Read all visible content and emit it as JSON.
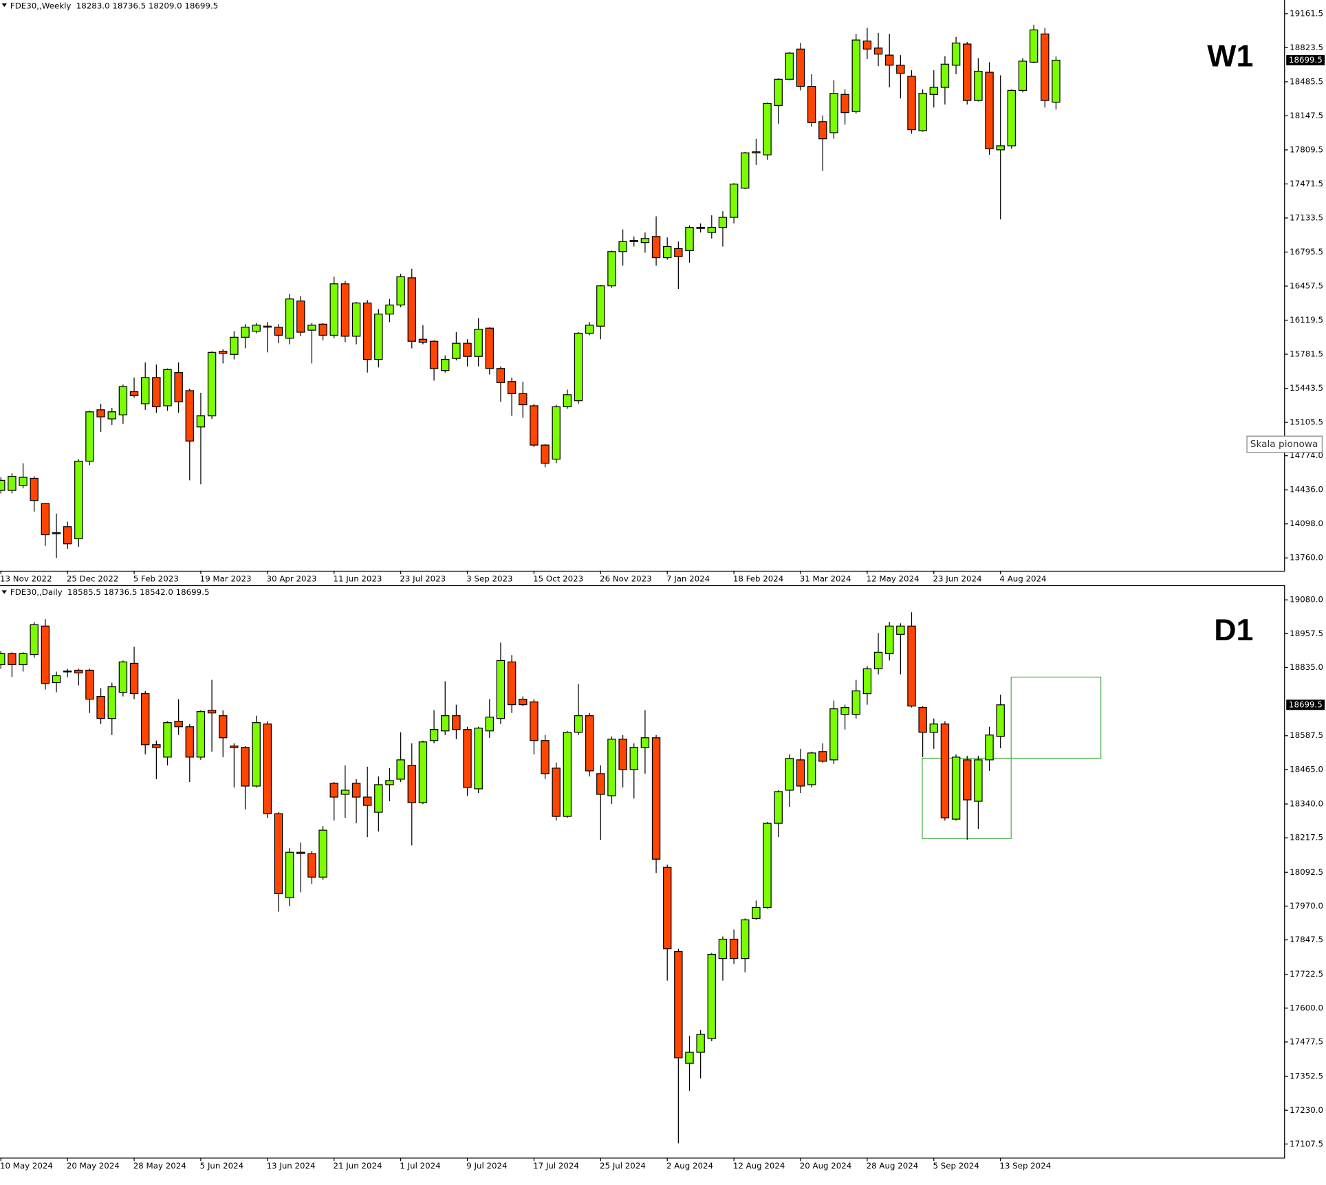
{
  "chart_data": [
    {
      "type": "candlestick",
      "title": "FDE30,,Weekly",
      "ohlc_text": "18283.0 18736.5 18209.0 18699.5",
      "label": "W1",
      "tooltip": "Skala pionowa",
      "up_color": "#7cfc00",
      "down_color": "#ff4500",
      "ylim": [
        13633,
        19297
      ],
      "yticks": [
        19161.5,
        18823.5,
        18485.5,
        18147.5,
        17809.5,
        17471.5,
        17133.5,
        16795.5,
        16457.5,
        16119.5,
        15781.5,
        15443.5,
        15105.5,
        {
          "value": 14774,
          "label": "14774.0"
        },
        {
          "value": 14436,
          "label": "14436.0"
        },
        {
          "value": 14098,
          "label": "14098.0"
        },
        {
          "value": 13760,
          "label": "13760.0"
        }
      ],
      "current_price": 18699.5,
      "categories": [
        "13 Nov 2022",
        null,
        null,
        null,
        null,
        null,
        "25 Dec 2022",
        null,
        null,
        null,
        null,
        null,
        "5 Feb 2023",
        null,
        null,
        null,
        null,
        null,
        "19 Mar 2023",
        null,
        null,
        null,
        null,
        null,
        "30 Apr 2023",
        null,
        null,
        null,
        null,
        null,
        "11 Jun 2023",
        null,
        null,
        null,
        null,
        null,
        "23 Jul 2023",
        null,
        null,
        null,
        null,
        null,
        "3 Sep 2023",
        null,
        null,
        null,
        null,
        null,
        "15 Oct 2023",
        null,
        null,
        null,
        null,
        null,
        "26 Nov 2023",
        null,
        null,
        null,
        null,
        null,
        "7 Jan 2024",
        null,
        null,
        null,
        null,
        null,
        "18 Feb 2024",
        null,
        null,
        null,
        null,
        null,
        "31 Mar 2024",
        null,
        null,
        null,
        null,
        null,
        "12 May 2024",
        null,
        null,
        null,
        null,
        null,
        "23 Jun 2024",
        null,
        null,
        null,
        null,
        null,
        "4 Aug 2024",
        null,
        null,
        null,
        null,
        null
      ],
      "open": [
        14430,
        14430,
        14480,
        14550,
        14300,
        14010,
        14070,
        13950,
        14720,
        15230,
        15140,
        15180,
        15410,
        15290,
        15550,
        15270,
        15600,
        15420,
        15060,
        15170,
        15810,
        15780,
        15950,
        16010,
        16060,
        16050,
        15940,
        16310,
        16020,
        16080,
        15970,
        16480,
        15960,
        16290,
        15730,
        16180,
        16270,
        16540,
        15930,
        15910,
        15620,
        15740,
        15890,
        15760,
        16040,
        15640,
        15510,
        15390,
        15270,
        14880,
        14740,
        15260,
        15320,
        15990,
        16060,
        16460,
        16800,
        16910,
        16890,
        16950,
        16740,
        16830,
        16810,
        17030,
        16990,
        17040,
        17140,
        17430,
        17780,
        17760,
        18250,
        18510,
        18810,
        18440,
        18090,
        17980,
        18360,
        18190,
        18890,
        18820,
        18750,
        18650,
        18540,
        18000,
        18360,
        18430,
        18650,
        18860,
        18300,
        18580,
        17810,
        17850,
        18400,
        18680,
        18960,
        18283
      ],
      "high": [
        14560,
        14600,
        14700,
        14570,
        14300,
        14200,
        14120,
        14740,
        15220,
        15290,
        15250,
        15480,
        15550,
        15700,
        15680,
        15640,
        15700,
        15440,
        15400,
        15810,
        15830,
        16010,
        16080,
        16090,
        16100,
        16080,
        16380,
        16360,
        16090,
        16090,
        16550,
        16510,
        16300,
        16320,
        16230,
        16330,
        16580,
        16630,
        16070,
        15920,
        15770,
        16000,
        15930,
        16140,
        16050,
        15660,
        15550,
        15510,
        15290,
        14890,
        15280,
        15430,
        16000,
        16100,
        16470,
        16810,
        17020,
        16950,
        16990,
        17150,
        16940,
        16900,
        17060,
        17080,
        17160,
        17200,
        17480,
        17790,
        17920,
        18280,
        18520,
        18780,
        18870,
        18560,
        18150,
        18500,
        18410,
        18960,
        19020,
        18970,
        18960,
        18750,
        18600,
        18410,
        18600,
        18740,
        18930,
        18880,
        18720,
        18680,
        18550,
        18410,
        18720,
        19050,
        19020,
        18736.5
      ],
      "low": [
        14400,
        14400,
        14450,
        14220,
        13880,
        13760,
        13850,
        13870,
        14680,
        15010,
        15080,
        15090,
        15350,
        15230,
        15200,
        15220,
        15200,
        14530,
        14490,
        15140,
        15690,
        15730,
        15840,
        15990,
        15800,
        15890,
        15880,
        15960,
        15690,
        15920,
        15940,
        15900,
        15880,
        15600,
        15650,
        16100,
        16250,
        15840,
        15880,
        15520,
        15600,
        15720,
        15660,
        15660,
        15580,
        15310,
        15170,
        15150,
        14860,
        14660,
        14700,
        15240,
        15290,
        15970,
        15930,
        16440,
        16660,
        16850,
        16790,
        16660,
        16720,
        16430,
        16690,
        16990,
        16930,
        16850,
        17080,
        17420,
        17660,
        17710,
        18070,
        18500,
        18400,
        18040,
        17600,
        17920,
        18060,
        18170,
        18710,
        18640,
        18430,
        18320,
        17970,
        17990,
        18230,
        18260,
        18560,
        18260,
        18290,
        17760,
        17120,
        17820,
        18380,
        18670,
        18230,
        18209
      ],
      "close": [
        14530,
        14570,
        14560,
        14330,
        13990,
        14000,
        13900,
        14720,
        15210,
        15160,
        15210,
        15460,
        15370,
        15550,
        15260,
        15630,
        15310,
        14920,
        15170,
        15800,
        15790,
        15950,
        16050,
        16070,
        16050,
        15970,
        16330,
        16000,
        16070,
        15970,
        16480,
        15960,
        16290,
        15730,
        16180,
        16270,
        16550,
        15910,
        15900,
        15640,
        15730,
        15890,
        15760,
        16030,
        15640,
        15500,
        15390,
        15280,
        14880,
        14700,
        15260,
        15380,
        15990,
        16070,
        16460,
        16800,
        16900,
        16900,
        16930,
        16740,
        16850,
        16750,
        17040,
        17040,
        17040,
        17140,
        17470,
        17780,
        17790,
        18270,
        18510,
        18770,
        18440,
        18080,
        17920,
        18370,
        18180,
        18900,
        18810,
        18760,
        18650,
        18570,
        18010,
        18370,
        18430,
        18660,
        18870,
        18300,
        18590,
        17820,
        17850,
        18400,
        18690,
        19000,
        18300,
        18699.5
      ]
    },
    {
      "type": "candlestick",
      "title": "FDE30,,Daily",
      "ohlc_text": "18585.5 18736.5 18542.0 18699.5",
      "label": "D1",
      "up_color": "#7cfc00",
      "down_color": "#ff4500",
      "ylim": [
        17058,
        19133
      ],
      "yticks": [
        {
          "value": 19080,
          "label": "19080.0"
        },
        18957.5,
        {
          "value": 18835,
          "label": "18835.0"
        },
        18587.5,
        {
          "value": 18465,
          "label": "18465.0"
        },
        {
          "value": 18340,
          "label": "18340.0"
        },
        18217.5,
        18092.5,
        {
          "value": 17970,
          "label": "17970.0"
        },
        17847.5,
        17722.5,
        {
          "value": 17600,
          "label": "17600.0"
        },
        17477.5,
        17352.5,
        {
          "value": 17230,
          "label": "17230.0"
        },
        17107.5
      ],
      "current_price": 18699.5,
      "categories": [
        "10 May 2024",
        null,
        null,
        null,
        null,
        null,
        "20 May 2024",
        null,
        null,
        null,
        null,
        null,
        "28 May 2024",
        null,
        null,
        null,
        null,
        null,
        "5 Jun 2024",
        null,
        null,
        null,
        null,
        null,
        "13 Jun 2024",
        null,
        null,
        null,
        null,
        null,
        "21 Jun 2024",
        null,
        null,
        null,
        null,
        null,
        "1 Jul 2024",
        null,
        null,
        null,
        null,
        null,
        "9 Jul 2024",
        null,
        null,
        null,
        null,
        null,
        "17 Jul 2024",
        null,
        null,
        null,
        null,
        null,
        "25 Jul 2024",
        null,
        null,
        null,
        null,
        null,
        "2 Aug 2024",
        null,
        null,
        null,
        null,
        null,
        "12 Aug 2024",
        null,
        null,
        null,
        null,
        null,
        "20 Aug 2024",
        null,
        null,
        null,
        null,
        null,
        "28 Aug 2024",
        null,
        null,
        null,
        null,
        null,
        "5 Sep 2024",
        null,
        null,
        null,
        null,
        null,
        "13 Sep 2024"
      ],
      "open": [
        18845,
        18885,
        18845,
        18882,
        18985,
        18780,
        18820,
        18825,
        18825,
        18730,
        18650,
        18745,
        18850,
        18740,
        18555,
        18510,
        18640,
        18620,
        18510,
        18680,
        18660,
        18550,
        18545,
        18405,
        18630,
        18305,
        18000,
        18165,
        18160,
        18075,
        18415,
        18375,
        18415,
        18365,
        18310,
        18410,
        18430,
        18480,
        18345,
        18570,
        18605,
        18660,
        18610,
        18395,
        18605,
        18650,
        18855,
        18720,
        18710,
        18570,
        18470,
        18295,
        18600,
        18660,
        18450,
        18370,
        18575,
        18465,
        18545,
        18580,
        18110,
        17805,
        17400,
        17440,
        17490,
        17780,
        17850,
        17780,
        17925,
        17965,
        18270,
        18390,
        18500,
        18410,
        18530,
        18500,
        18665,
        18665,
        18740,
        18830,
        18885,
        18955,
        18985,
        18690,
        18600,
        18630,
        18285,
        18500,
        18350,
        18500,
        18585.5
      ],
      "high": [
        18895,
        18890,
        18890,
        19000,
        19010,
        18820,
        18830,
        18830,
        18830,
        18760,
        18780,
        18860,
        18910,
        18750,
        18570,
        18640,
        18720,
        18630,
        18680,
        18790,
        18680,
        18560,
        18550,
        18660,
        18640,
        18310,
        18180,
        18200,
        18170,
        18260,
        18420,
        18480,
        18430,
        18475,
        18440,
        18470,
        18600,
        18560,
        18570,
        18680,
        18785,
        18700,
        18620,
        18620,
        18720,
        18925,
        18880,
        18730,
        18720,
        18590,
        18490,
        18605,
        18775,
        18670,
        18480,
        18585,
        18590,
        18560,
        18680,
        18590,
        18120,
        17815,
        17500,
        17520,
        17800,
        17860,
        17885,
        17925,
        17990,
        18275,
        18390,
        18520,
        18540,
        18530,
        18560,
        18715,
        18700,
        18790,
        18840,
        18960,
        19000,
        18995,
        19035,
        18695,
        18650,
        18640,
        18520,
        18515,
        18515,
        18620,
        18736.5
      ],
      "low": [
        18830,
        18800,
        18820,
        18870,
        18755,
        18745,
        18800,
        18770,
        18670,
        18630,
        18590,
        18730,
        18720,
        18520,
        18430,
        18480,
        18590,
        18420,
        18500,
        18530,
        18510,
        18400,
        18320,
        18400,
        18290,
        17950,
        17970,
        18020,
        18050,
        18065,
        18280,
        18290,
        18270,
        18220,
        18240,
        18350,
        18420,
        18190,
        18340,
        18560,
        18590,
        18575,
        18370,
        18380,
        18580,
        18630,
        18670,
        18695,
        18520,
        18430,
        18280,
        18290,
        18590,
        18440,
        18210,
        18340,
        18400,
        18360,
        18450,
        18090,
        17700,
        17110,
        17300,
        17345,
        17480,
        17700,
        17760,
        17730,
        17920,
        17960,
        18220,
        18330,
        18380,
        18400,
        18490,
        18485,
        18610,
        18650,
        18700,
        18810,
        18860,
        18810,
        18690,
        18510,
        18540,
        18280,
        18280,
        18210,
        18250,
        18460,
        18542
      ],
      "close": [
        18885,
        18845,
        18885,
        18990,
        18777,
        18805,
        18822,
        18815,
        18720,
        18650,
        18765,
        18855,
        18740,
        18555,
        18545,
        18635,
        18620,
        18510,
        18675,
        18670,
        18580,
        18545,
        18405,
        18635,
        18305,
        18015,
        18165,
        18160,
        18075,
        18245,
        18365,
        18390,
        18365,
        18335,
        18410,
        18425,
        18500,
        18345,
        18565,
        18610,
        18660,
        18610,
        18400,
        18615,
        18655,
        18860,
        18700,
        18700,
        18570,
        18450,
        18295,
        18600,
        18660,
        18460,
        18375,
        18575,
        18465,
        18545,
        18580,
        18140,
        17815,
        17420,
        17440,
        17505,
        17795,
        17850,
        17780,
        17920,
        17965,
        18270,
        18385,
        18505,
        18405,
        18525,
        18495,
        18685,
        18690,
        18750,
        18830,
        18890,
        18985,
        18985,
        18695,
        18600,
        18630,
        18290,
        18510,
        18355,
        18500,
        18590,
        18699.5
      ]
    }
  ]
}
